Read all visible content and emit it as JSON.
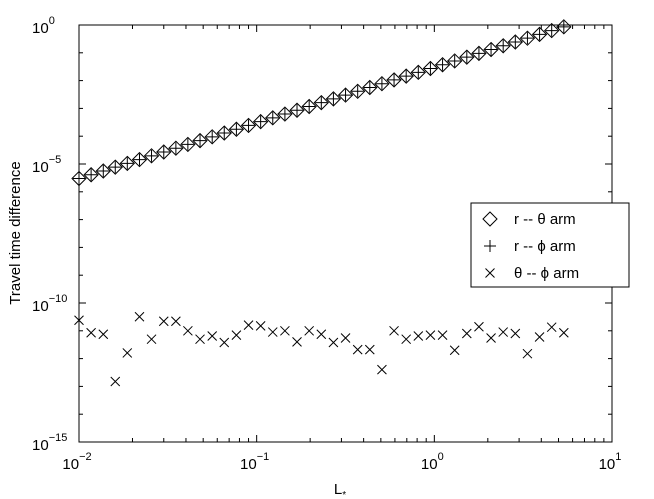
{
  "chart_data": {
    "type": "scatter",
    "title": "",
    "xlabel": "L",
    "xlabel_subscript": "*",
    "ylabel": "Travel time difference",
    "xscale": "log",
    "yscale": "log",
    "xlim": [
      0.01,
      10
    ],
    "ylim": [
      1e-15,
      1
    ],
    "grid": false,
    "legend_position": "right",
    "x_ticks": [
      {
        "value": 0.01,
        "base": "10",
        "exp": "−2"
      },
      {
        "value": 0.1,
        "base": "10",
        "exp": "−1"
      },
      {
        "value": 1,
        "base": "10",
        "exp": "0"
      },
      {
        "value": 10,
        "base": "10",
        "exp": "1"
      }
    ],
    "y_ticks": [
      {
        "value": 1e-15,
        "base": "10",
        "exp": "−15"
      },
      {
        "value": 1e-10,
        "base": "10",
        "exp": "−10"
      },
      {
        "value": 1e-05,
        "base": "10",
        "exp": "−5"
      },
      {
        "value": 1,
        "base": "10",
        "exp": "0"
      }
    ],
    "x": [
      0.01,
      0.0117,
      0.0137,
      0.016,
      0.0187,
      0.0219,
      0.0256,
      0.03,
      0.0351,
      0.041,
      0.048,
      0.0562,
      0.0657,
      0.0769,
      0.09,
      0.1053,
      0.1232,
      0.1442,
      0.1687,
      0.1975,
      0.2311,
      0.2704,
      0.3164,
      0.3703,
      0.4333,
      0.507,
      0.5933,
      0.6943,
      0.8124,
      0.9506,
      1.1125,
      1.3017,
      1.5233,
      1.7826,
      2.0859,
      2.4409,
      2.8563,
      3.3424,
      3.9113,
      4.5769,
      5.3557
    ],
    "series": [
      {
        "name": "r -- θ arm",
        "marker": "diamond",
        "values": [
          3e-06,
          4.1e-06,
          5.6e-06,
          7.7e-06,
          1.05e-05,
          1.44e-05,
          1.97e-05,
          2.7e-05,
          3.7e-05,
          5.06e-05,
          6.93e-05,
          9.49e-05,
          0.00013,
          0.000178,
          0.000244,
          0.000334,
          0.000457,
          0.000626,
          0.000857,
          0.00117,
          0.00161,
          0.0022,
          0.00301,
          0.00412,
          0.00564,
          0.00773,
          0.0106,
          0.0145,
          0.0198,
          0.0272,
          0.0372,
          0.0509,
          0.0697,
          0.0955,
          0.131,
          0.179,
          0.245,
          0.336,
          0.46,
          0.63,
          0.86
        ]
      },
      {
        "name": "r -- ϕ arm",
        "marker": "plus",
        "values": [
          3e-06,
          4.1e-06,
          5.6e-06,
          7.7e-06,
          1.05e-05,
          1.44e-05,
          1.97e-05,
          2.7e-05,
          3.7e-05,
          5.06e-05,
          6.93e-05,
          9.49e-05,
          0.00013,
          0.000178,
          0.000244,
          0.000334,
          0.000457,
          0.000626,
          0.000857,
          0.00117,
          0.00161,
          0.0022,
          0.00301,
          0.00412,
          0.00564,
          0.00773,
          0.0106,
          0.0145,
          0.0198,
          0.0272,
          0.0372,
          0.0509,
          0.0697,
          0.0955,
          0.131,
          0.179,
          0.245,
          0.336,
          0.46,
          0.63,
          0.86
        ]
      },
      {
        "name": "θ -- ϕ arm",
        "marker": "x",
        "values": [
          2.4e-11,
          8.5e-12,
          7.5e-12,
          1.5e-13,
          1.6e-12,
          3.2e-11,
          5e-12,
          2.2e-11,
          2.2e-11,
          1e-11,
          5e-12,
          6.5e-12,
          3.8e-12,
          7e-12,
          1.6e-11,
          1.5e-11,
          9e-12,
          1e-11,
          4e-12,
          1e-11,
          7.5e-12,
          3.8e-12,
          5.5e-12,
          2.1e-12,
          2.1e-12,
          4e-13,
          1e-11,
          5e-12,
          6.5e-12,
          7e-12,
          7e-12,
          2e-12,
          8e-12,
          1.4e-11,
          5.5e-12,
          9e-12,
          8e-12,
          1.5e-12,
          6e-12,
          1.35e-11,
          8.5e-12
        ]
      }
    ]
  }
}
